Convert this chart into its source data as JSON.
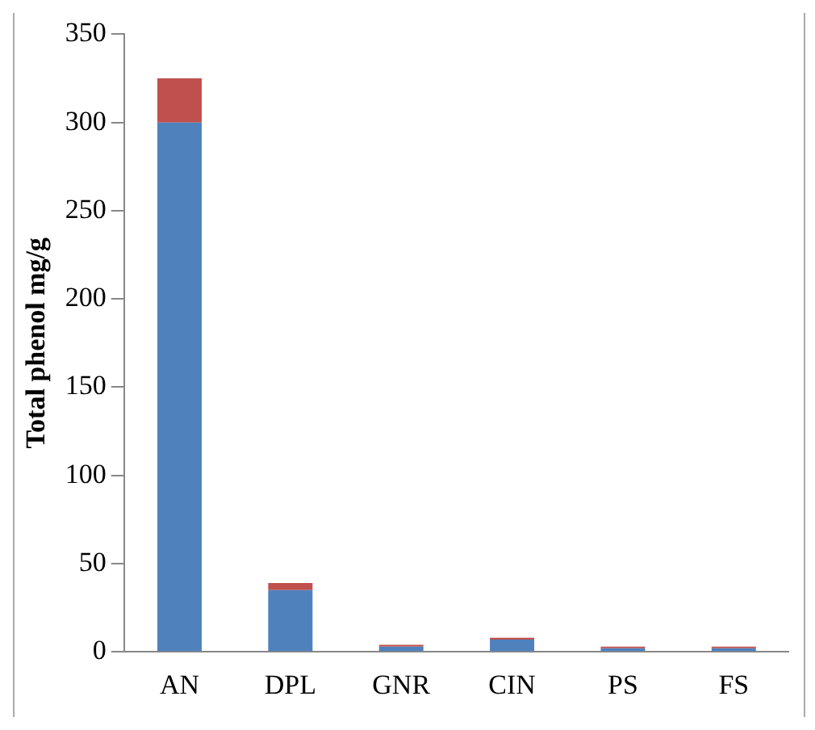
{
  "chart_data": {
    "type": "bar",
    "stacked": true,
    "ylabel": "Total phenol mg/g",
    "categories": [
      "AN",
      "DPL",
      "GNR",
      "CIN",
      "PS",
      "FS"
    ],
    "series": [
      {
        "color": "#4f81bd",
        "values": [
          300,
          35,
          3,
          7,
          2,
          2
        ]
      },
      {
        "color": "#c0504d",
        "values": [
          25,
          4,
          1,
          1,
          1,
          1
        ]
      }
    ],
    "ylim": [
      0,
      350
    ],
    "yticks": [
      0,
      50,
      100,
      150,
      200,
      250,
      300,
      350
    ],
    "grid": false,
    "legend": false
  }
}
